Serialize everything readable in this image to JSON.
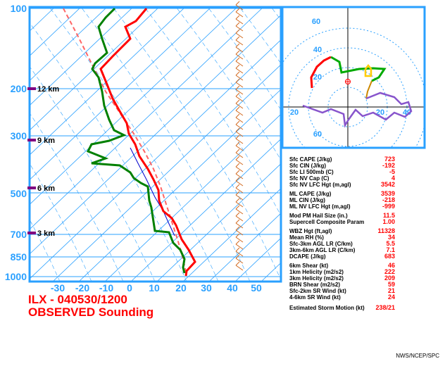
{
  "colors": {
    "frame": "#2aa0ff",
    "temperature": "#ff0000",
    "dewpoint": "#008000",
    "parcel": "#ff6666",
    "virtual_temp": "#0000cc",
    "wind_barb": "#d2691e",
    "km_marker": "#800080",
    "hodograph_low": "#ff0000",
    "hodograph_mid": "#00aa00",
    "hodograph_upper": "#8855cc",
    "bunkers": "#ffcc00",
    "storm_motion": "#cc8800"
  },
  "skewt": {
    "pressure_labels": [
      "100",
      "200",
      "300",
      "500",
      "700",
      "850",
      "1000"
    ],
    "temperature_labels": [
      "-30",
      "-20",
      "-10",
      "0",
      "10",
      "20",
      "30",
      "40",
      "50"
    ],
    "height_labels": [
      "12 km",
      "9 km",
      "6 km",
      "3 km"
    ]
  },
  "hodograph": {
    "ring_labels": [
      "60",
      "40",
      "20",
      "20",
      "40",
      "60",
      "20"
    ]
  },
  "caption": {
    "line1": "ILX - 040530/1200",
    "line2": "OBSERVED Sounding"
  },
  "parameters": {
    "group1": [
      {
        "label": "Sfc CAPE (J/kg)",
        "value": "723"
      },
      {
        "label": "Sfc CIN (J/kg)",
        "value": "-192"
      },
      {
        "label": "Sfc LI 500mb (C)",
        "value": "-5"
      },
      {
        "label": "Sfc NV Cap (C)",
        "value": "4"
      },
      {
        "label": "Sfc NV LFC Hgt (m,agl)",
        "value": "3542"
      }
    ],
    "group2": [
      {
        "label": "ML CAPE (J/kg)",
        "value": "3539"
      },
      {
        "label": "ML CIN (J/kg)",
        "value": "-218"
      },
      {
        "label": "ML NV LFC Hgt (m,agl)",
        "value": "-999"
      }
    ],
    "group3": [
      {
        "label": "Mod PM Hail Size (in.)",
        "value": "11.5"
      },
      {
        "label": "Supercell Composite Param",
        "value": "1.00"
      }
    ],
    "group4": [
      {
        "label": "WBZ Hgt (ft,agl)",
        "value": "11328"
      },
      {
        "label": "Mean RH (%)",
        "value": "34"
      },
      {
        "label": "Sfc-3km AGL LR (C/km)",
        "value": "5.5"
      },
      {
        "label": "3km-6km AGL LR (C/km)",
        "value": "7.1"
      },
      {
        "label": "DCAPE (J/kg)",
        "value": "683"
      }
    ],
    "group5": [
      {
        "label": "6km Shear (kt)",
        "value": "46"
      },
      {
        "label": "1km Helicity (m2/s2)",
        "value": "222"
      },
      {
        "label": "3km Helicity (m2/s2)",
        "value": "209"
      },
      {
        "label": "BRN Shear (m2/s2)",
        "value": "59"
      },
      {
        "label": "Sfc-2km SR Wind (kt)",
        "value": "21"
      },
      {
        "label": "4-6km SR Wind (kt)",
        "value": "24"
      }
    ],
    "storm_motion": {
      "label": "Estimated Storm Motion (kt)",
      "value": "238/21"
    }
  },
  "footer": "NWS/NCEP/SPC"
}
